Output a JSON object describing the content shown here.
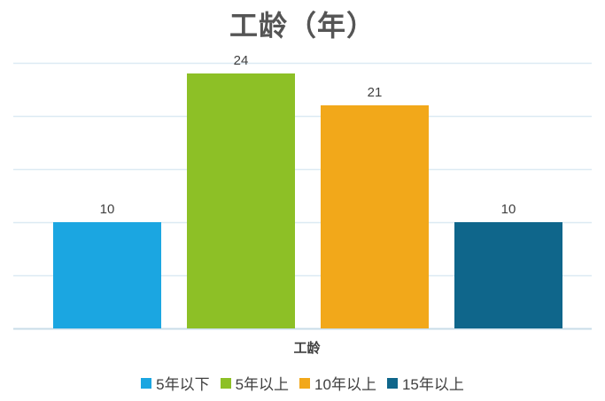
{
  "chart_data": {
    "type": "bar",
    "title": "工龄（年）",
    "xlabel": "工龄",
    "ylabel": "",
    "ylim": [
      0,
      25
    ],
    "grid": true,
    "legend_position": "bottom",
    "categories": [
      "工龄"
    ],
    "series": [
      {
        "name": "5年以下",
        "values": [
          10
        ],
        "color": "#1BA6E1"
      },
      {
        "name": "5年以上",
        "values": [
          24
        ],
        "color": "#8DC026"
      },
      {
        "name": "10年以上",
        "values": [
          21
        ],
        "color": "#F2A81A"
      },
      {
        "name": "15年以上",
        "values": [
          10
        ],
        "color": "#0F668B"
      }
    ]
  }
}
